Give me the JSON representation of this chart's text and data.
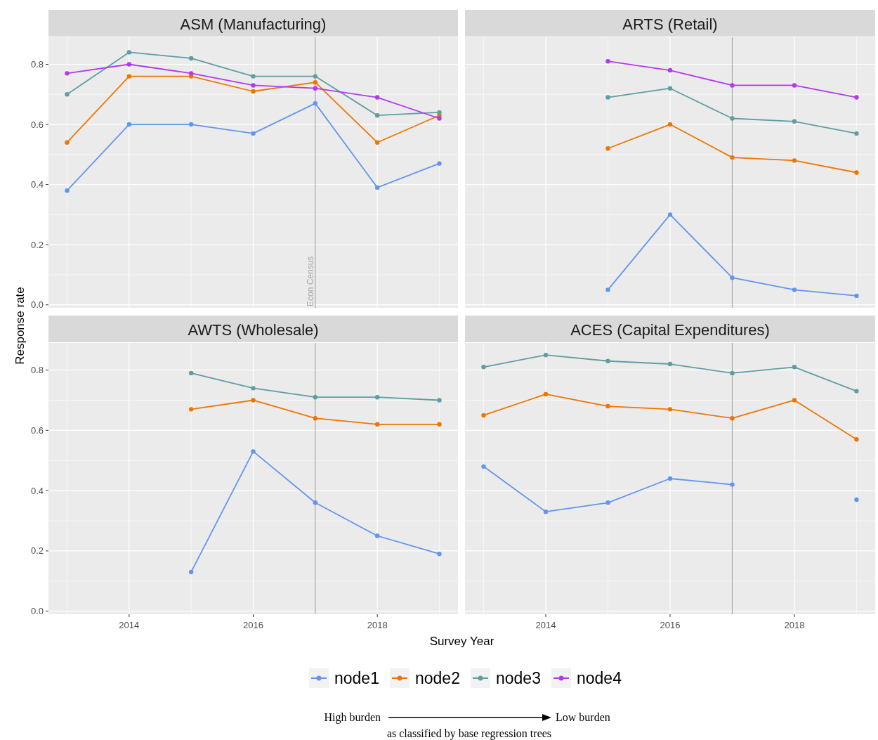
{
  "chart_data": [
    {
      "type": "line",
      "title": "ASM (Manufacturing)",
      "ylabel": "Response rate",
      "x": [
        2013,
        2014,
        2015,
        2016,
        2017,
        2018,
        2019
      ],
      "xlim": [
        2012.7,
        2019.3
      ],
      "ylim": [
        -0.01,
        0.89
      ],
      "xticks": [
        2014,
        2016,
        2018
      ],
      "yticks": [
        {
          "value": 0,
          "label": "0.0"
        },
        0.2,
        0.4,
        0.6,
        0.8
      ],
      "grid": true,
      "marker": "circle",
      "legend": "bottom",
      "tick_labels": "y",
      "ref_lines": [
        {
          "axis": "x",
          "value": 2017,
          "label": "Econ Census",
          "color": "#a6a6a6"
        }
      ],
      "annotations": [
        "High burden",
        "Low burden",
        "as classified by base regression trees"
      ],
      "series": [
        {
          "name": "node1",
          "color": "#6495ed",
          "values": [
            0.38,
            0.6,
            0.6,
            0.57,
            0.67,
            0.39,
            0.47
          ]
        },
        {
          "name": "node2",
          "color": "#ee7600",
          "values": [
            0.54,
            0.76,
            0.76,
            0.71,
            0.74,
            0.54,
            0.63
          ]
        },
        {
          "name": "node3",
          "color": "#5f9ea0",
          "values": [
            0.7,
            0.84,
            0.82,
            0.76,
            0.76,
            0.63,
            0.64
          ]
        },
        {
          "name": "node4",
          "color": "#b23aee",
          "values": [
            0.77,
            0.8,
            0.77,
            0.73,
            0.72,
            0.69,
            0.62
          ]
        }
      ]
    },
    {
      "type": "line",
      "title": "ARTS (Retail)",
      "x": [
        2015,
        2016,
        2017,
        2018,
        2019
      ],
      "xlim": [
        2012.7,
        2019.3
      ],
      "ylim": [
        -0.01,
        0.89
      ],
      "xticks": [
        2014,
        2016,
        2018
      ],
      "yticks": [
        0,
        0.2,
        0.4,
        0.6,
        0.8
      ],
      "grid": true,
      "marker": "circle",
      "tick_labels": false,
      "ref_lines": [
        {
          "axis": "x",
          "value": 2017,
          "color": "#a6a6a6"
        }
      ],
      "series": [
        {
          "color": "#6495ed",
          "values": [
            0.05,
            0.3,
            0.09,
            0.05,
            0.03
          ]
        },
        {
          "color": "#ee7600",
          "values": [
            0.52,
            0.6,
            0.49,
            0.48,
            0.44
          ]
        },
        {
          "color": "#5f9ea0",
          "values": [
            0.69,
            0.72,
            0.62,
            0.61,
            0.57
          ]
        },
        {
          "color": "#b23aee",
          "values": [
            0.81,
            0.78,
            0.73,
            0.73,
            0.69
          ]
        }
      ]
    },
    {
      "type": "line",
      "title": "AWTS (Wholesale)",
      "xlabel": "Survey Year",
      "x": [
        2015,
        2016,
        2017,
        2018,
        2019
      ],
      "xlim": [
        2012.7,
        2019.3
      ],
      "ylim": [
        -0.01,
        0.89
      ],
      "xticks": [
        2014,
        2016,
        2018
      ],
      "yticks": [
        {
          "value": 0,
          "label": "0.0"
        },
        0.2,
        0.4,
        0.6,
        0.8
      ],
      "grid": true,
      "marker": "circle",
      "ref_lines": [
        {
          "axis": "x",
          "value": 2017,
          "color": "#a6a6a6"
        }
      ],
      "series": [
        {
          "color": "#6495ed",
          "values": [
            0.13,
            0.53,
            0.36,
            0.25,
            0.19
          ]
        },
        {
          "color": "#ee7600",
          "values": [
            0.67,
            0.7,
            0.64,
            0.62,
            0.62
          ]
        },
        {
          "color": "#5f9ea0",
          "values": [
            0.79,
            0.74,
            0.71,
            0.71,
            0.7
          ]
        }
      ]
    },
    {
      "type": "line",
      "title": "ACES (Capital Expenditures)",
      "x": [
        2013,
        2014,
        2015,
        2016,
        2017,
        2018,
        2019
      ],
      "xlim": [
        2012.7,
        2019.3
      ],
      "ylim": [
        -0.01,
        0.89
      ],
      "xticks": [
        2014,
        2016,
        2018
      ],
      "yticks": [
        0,
        0.2,
        0.4,
        0.6,
        0.8
      ],
      "grid": true,
      "marker": "circle",
      "tick_labels": "x",
      "ref_lines": [
        {
          "axis": "x",
          "value": 2017,
          "color": "#a6a6a6"
        }
      ],
      "series": [
        {
          "color": "#6495ed",
          "values": [
            0.48,
            0.33,
            0.36,
            0.44,
            0.42,
            null,
            0.37
          ]
        },
        {
          "color": "#ee7600",
          "values": [
            0.65,
            0.72,
            0.68,
            0.67,
            0.64,
            0.7,
            0.57
          ]
        },
        {
          "color": "#5f9ea0",
          "values": [
            0.81,
            0.85,
            0.83,
            0.82,
            0.79,
            0.81,
            0.73
          ]
        }
      ]
    }
  ]
}
